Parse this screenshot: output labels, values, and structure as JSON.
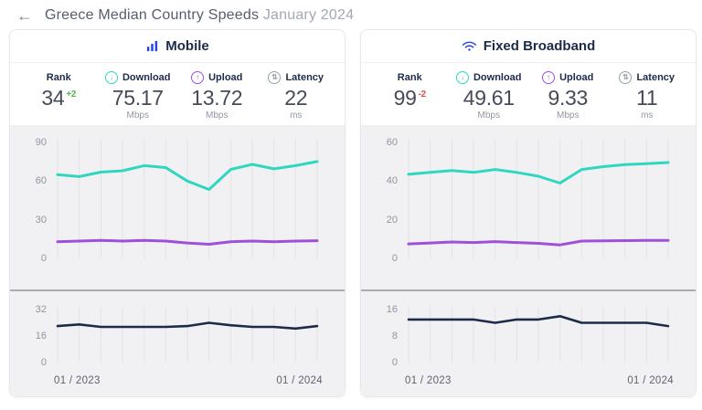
{
  "header": {
    "title": "Greece Median Country Speeds",
    "subtitle": "January 2024"
  },
  "icons": {
    "back": "←",
    "download": "↓",
    "upload": "↑",
    "latency": "⇅"
  },
  "colors": {
    "brand_blue": "#2b44e7",
    "teal": "#30d7c0",
    "purple": "#a050d8",
    "navy": "#1d2b49",
    "green": "#58b34f",
    "red": "#e04f4f",
    "latency_gray": "#9aa0ab"
  },
  "panels": [
    {
      "title": "Mobile",
      "stats": {
        "rank": {
          "label": "Rank",
          "value": "34",
          "change": "+2",
          "change_color": "#58b34f"
        },
        "download": {
          "label": "Download",
          "value": "75.17",
          "unit": "Mbps",
          "color": "#30d7c0"
        },
        "upload": {
          "label": "Upload",
          "value": "13.72",
          "unit": "Mbps",
          "color": "#a050d8"
        },
        "latency": {
          "label": "Latency",
          "value": "22",
          "unit": "ms",
          "color": "#9aa0ab"
        }
      }
    },
    {
      "title": "Fixed Broadband",
      "stats": {
        "rank": {
          "label": "Rank",
          "value": "99",
          "change": "-2",
          "change_color": "#e04f4f"
        },
        "download": {
          "label": "Download",
          "value": "49.61",
          "unit": "Mbps",
          "color": "#30d7c0"
        },
        "upload": {
          "label": "Upload",
          "value": "9.33",
          "unit": "Mbps",
          "color": "#a050d8"
        },
        "latency": {
          "label": "Latency",
          "value": "11",
          "unit": "ms",
          "color": "#9aa0ab"
        }
      }
    }
  ],
  "chart_data": [
    {
      "type": "line",
      "kind": "speed",
      "title": "Mobile download & upload (Mbps)",
      "x": [
        "01/2023",
        "02/2023",
        "03/2023",
        "04/2023",
        "05/2023",
        "06/2023",
        "07/2023",
        "08/2023",
        "09/2023",
        "10/2023",
        "11/2023",
        "12/2023",
        "01/2024"
      ],
      "series": [
        {
          "name": "Download",
          "color": "#30d7c0",
          "values": [
            65,
            63.5,
            67,
            68,
            72,
            70.5,
            60,
            53.5,
            69,
            73,
            69.5,
            72,
            75.17
          ]
        },
        {
          "name": "Upload",
          "color": "#a050d8",
          "values": [
            13,
            13.5,
            14,
            13.5,
            14,
            13.5,
            12,
            11,
            13,
            13.5,
            13,
            13.5,
            13.72
          ]
        }
      ],
      "ylim": [
        0,
        90
      ],
      "yticks": [
        0,
        30,
        60,
        90
      ],
      "grid": "vertical",
      "xtick_labels": [
        "01 / 2023",
        "01 / 2024"
      ]
    },
    {
      "type": "line",
      "kind": "latency",
      "title": "Mobile latency (ms)",
      "x": [
        "01/2023",
        "02/2023",
        "03/2023",
        "04/2023",
        "05/2023",
        "06/2023",
        "07/2023",
        "08/2023",
        "09/2023",
        "10/2023",
        "11/2023",
        "12/2023",
        "01/2024"
      ],
      "series": [
        {
          "name": "Latency",
          "color": "#1d2b49",
          "values": [
            22,
            23,
            21.5,
            21.5,
            21.5,
            21.5,
            22,
            24,
            22.5,
            21.5,
            21.5,
            20.5,
            22
          ]
        }
      ],
      "ylim": [
        0,
        32
      ],
      "yticks": [
        0,
        16,
        32
      ],
      "grid": "vertical",
      "xtick_labels": [
        "01 / 2023",
        "01 / 2024"
      ]
    },
    {
      "type": "line",
      "kind": "speed",
      "title": "Fixed broadband download & upload (Mbps)",
      "x": [
        "01/2023",
        "02/2023",
        "03/2023",
        "04/2023",
        "05/2023",
        "06/2023",
        "07/2023",
        "08/2023",
        "09/2023",
        "10/2023",
        "11/2023",
        "12/2023",
        "01/2024"
      ],
      "series": [
        {
          "name": "Download",
          "color": "#30d7c0",
          "values": [
            43.5,
            44.5,
            45.5,
            44.5,
            46,
            44.5,
            42.5,
            39,
            46,
            47.5,
            48.5,
            49,
            49.61
          ]
        },
        {
          "name": "Upload",
          "color": "#a050d8",
          "values": [
            7.5,
            8,
            8.5,
            8.2,
            8.7,
            8.2,
            7.8,
            7,
            9,
            9.1,
            9.2,
            9.3,
            9.33
          ]
        }
      ],
      "ylim": [
        0,
        60
      ],
      "yticks": [
        0,
        20,
        40,
        60
      ],
      "grid": "vertical",
      "xtick_labels": [
        "01 / 2023",
        "01 / 2024"
      ]
    },
    {
      "type": "line",
      "kind": "latency",
      "title": "Fixed broadband latency (ms)",
      "x": [
        "01/2023",
        "02/2023",
        "03/2023",
        "04/2023",
        "05/2023",
        "06/2023",
        "07/2023",
        "08/2023",
        "09/2023",
        "10/2023",
        "11/2023",
        "12/2023",
        "01/2024"
      ],
      "series": [
        {
          "name": "Latency",
          "color": "#1d2b49",
          "values": [
            13,
            13,
            13,
            13,
            12,
            13,
            13,
            14,
            12,
            12,
            12,
            12,
            11
          ]
        }
      ],
      "ylim": [
        0,
        16
      ],
      "yticks": [
        0,
        8,
        16
      ],
      "grid": "vertical",
      "xtick_labels": [
        "01 / 2023",
        "01 / 2024"
      ]
    }
  ]
}
